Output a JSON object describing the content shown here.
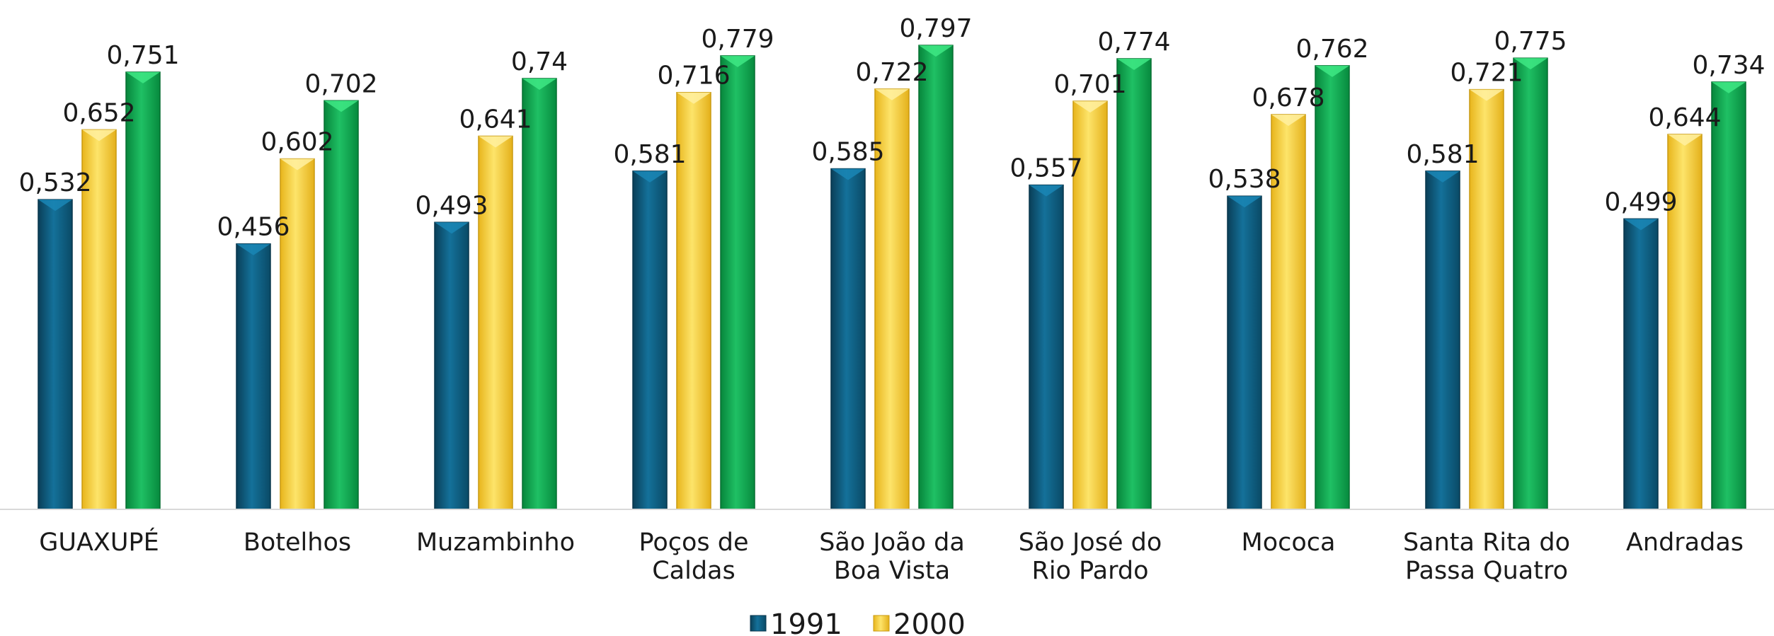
{
  "chart_data": {
    "type": "bar",
    "categories": [
      [
        "GUAXUPÉ"
      ],
      [
        "Botelhos"
      ],
      [
        "Muzambinho"
      ],
      [
        "Poços de",
        "Caldas"
      ],
      [
        "São João da",
        "Boa Vista"
      ],
      [
        "São José do",
        "Rio Pardo"
      ],
      [
        "Mococa"
      ],
      [
        "Santa Rita do",
        "Passa Quatro"
      ],
      [
        "Andradas"
      ]
    ],
    "series": [
      {
        "name": "1991",
        "color": "#0f5c7e",
        "values": [
          0.532,
          0.456,
          0.493,
          0.581,
          0.585,
          0.557,
          0.538,
          0.581,
          0.499
        ],
        "labels": [
          "0,532",
          "0,456",
          "0,493",
          "0,581",
          "0,585",
          "0,557",
          "0,538",
          "0,581",
          "0,499"
        ]
      },
      {
        "name": "2000",
        "color": "#f3d33a",
        "values": [
          0.652,
          0.602,
          0.641,
          0.716,
          0.722,
          0.701,
          0.678,
          0.721,
          0.644
        ],
        "labels": [
          "0,652",
          "0,602",
          "0,641",
          "0,716",
          "0,722",
          "0,701",
          "0,678",
          "0,721",
          "0,644"
        ]
      },
      {
        "color": "#12a94e",
        "values": [
          0.751,
          0.702,
          0.74,
          0.779,
          0.797,
          0.774,
          0.762,
          0.775,
          0.734
        ],
        "labels": [
          "0,751",
          "0,702",
          "0,74",
          "0,779",
          "0,797",
          "0,774",
          "0,762",
          "0,775",
          "0,734"
        ]
      }
    ],
    "ylim": [
      0,
      0.8
    ],
    "grid": false,
    "legend_position": "bottom",
    "legend_entries": [
      "1991",
      "2000"
    ]
  }
}
